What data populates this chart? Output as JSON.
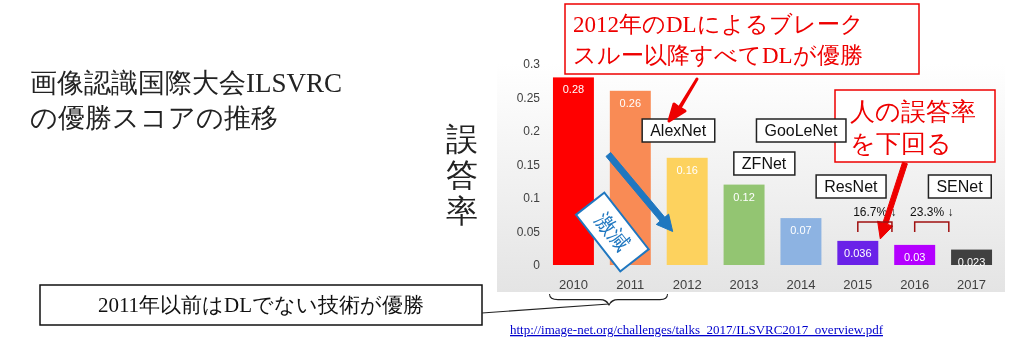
{
  "chart_data": {
    "type": "bar",
    "ylabel": "誤答率",
    "categories": [
      "2010",
      "2011",
      "2012",
      "2013",
      "2014",
      "2015",
      "2016",
      "2017"
    ],
    "values": [
      0.28,
      0.26,
      0.16,
      0.12,
      0.07,
      0.036,
      0.03,
      0.023
    ],
    "colors": [
      "#ff0000",
      "#f98b55",
      "#fdd25e",
      "#93c572",
      "#8db3e2",
      "#6a22e8",
      "#b400ff",
      "#404040"
    ],
    "ylim": [
      0,
      0.3
    ],
    "yticks": [
      0,
      0.05,
      0.1,
      0.15,
      0.2,
      0.25,
      0.3
    ],
    "data_labels": true,
    "grid": false,
    "annotations": [
      "画像認識国際大会ILSVRC",
      "の優勝スコアの推移",
      "2012年のDLによるブレーク",
      "スルー以降すべてDLが優勝",
      "人の誤答率",
      "を下回る",
      "激減",
      "16.7% ↓",
      "23.3% ↓",
      "2011年以前はDLでない技術が優勝",
      "http://image-net.org/challenges/talks_2017/ILSVRC2017_overview.pdf",
      "AlexNet",
      "GooLeNet",
      "ZFNet",
      "ResNet",
      "SENet"
    ]
  }
}
